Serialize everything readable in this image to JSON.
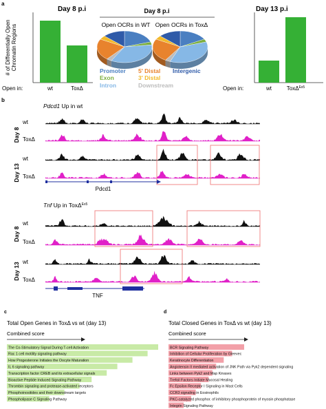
{
  "panel_a": {
    "label": "a",
    "left": {
      "title": "Day 8 p.i",
      "ylabel_line1": "# of Differentially Open",
      "ylabel_line2": "Chromatin Regions",
      "open_in": "Open in:",
      "categories": [
        "wt",
        "ToxΔ"
      ],
      "values": [
        900,
        540
      ],
      "ymax": 1000,
      "bar_color": "#35b035"
    },
    "middle": {
      "title": "Day 8 p.i",
      "pie_titles": [
        "Open OCRs in WT",
        "Open OCRs in ToxΔ"
      ],
      "legend": [
        {
          "label": "Promoter",
          "color": "#4a7fc1"
        },
        {
          "label": "5' Distal",
          "color": "#e8832d"
        },
        {
          "label": "Intergenic",
          "color": "#2f5aa8"
        },
        {
          "label": "Exon",
          "color": "#7cae3e"
        },
        {
          "label": "3' Distal",
          "color": "#f2b92b"
        },
        {
          "label": "Intron",
          "color": "#86b8e6"
        },
        {
          "label": "Downstream",
          "color": "#bcbcbc"
        }
      ],
      "pies": [
        {
          "slices": [
            {
              "label": "Promoter",
              "fraction": 0.2,
              "color": "#4a7fc1"
            },
            {
              "label": "Exon",
              "fraction": 0.03,
              "color": "#7cae3e"
            },
            {
              "label": "Intron",
              "fraction": 0.35,
              "color": "#86b8e6"
            },
            {
              "label": "Downstream",
              "fraction": 0.03,
              "color": "#bcbcbc"
            },
            {
              "label": "5' Distal",
              "fraction": 0.22,
              "color": "#e8832d"
            },
            {
              "label": "3' Distal",
              "fraction": 0.04,
              "color": "#f2b92b"
            },
            {
              "label": "Intergenic",
              "fraction": 0.13,
              "color": "#2f5aa8"
            }
          ]
        },
        {
          "slices": [
            {
              "label": "Promoter",
              "fraction": 0.17,
              "color": "#4a7fc1"
            },
            {
              "label": "Exon",
              "fraction": 0.03,
              "color": "#7cae3e"
            },
            {
              "label": "Intron",
              "fraction": 0.36,
              "color": "#86b8e6"
            },
            {
              "label": "Downstream",
              "fraction": 0.03,
              "color": "#bcbcbc"
            },
            {
              "label": "5' Distal",
              "fraction": 0.24,
              "color": "#e8832d"
            },
            {
              "label": "3' Distal",
              "fraction": 0.04,
              "color": "#f2b92b"
            },
            {
              "label": "Intergenic",
              "fraction": 0.13,
              "color": "#2f5aa8"
            }
          ]
        }
      ]
    },
    "right": {
      "title": "Day 13 p.i",
      "open_in": "Open in:",
      "categories": [
        "wt",
        "ToxΔ"
      ],
      "cat2_sup": "Ex5",
      "values": [
        320,
        950
      ],
      "ymax": 1000,
      "bar_color": "#35b035"
    }
  },
  "panel_b": {
    "label": "b",
    "pdcd1": {
      "title_gene": "Pdcd1",
      "title_rest": " Up in wt",
      "day8": "Day 8",
      "day13": "Day 13",
      "tracks": [
        {
          "label": "wt",
          "color": "#111111",
          "seed": 3
        },
        {
          "label": "ToxΔ",
          "color": "#e020c8",
          "seed": 7
        },
        {
          "label": "wt",
          "color": "#111111",
          "seed": 11
        },
        {
          "label": "ToxΔ",
          "color": "#e020c8",
          "seed": 17
        }
      ],
      "gene_label": "Pdcd1"
    },
    "tnf": {
      "title_gene": "Tnf",
      "title_rest": " Up in ToxΔ",
      "title_sup": "Ex5",
      "day8": "Day 8",
      "day13": "Day 13",
      "tracks": [
        {
          "label": "wt",
          "color": "#111111",
          "seed": 23
        },
        {
          "label": "ToxΔ",
          "color": "#e020c8",
          "seed": 29
        },
        {
          "label": "wt",
          "color": "#111111",
          "seed": 31
        },
        {
          "label": "ToxΔ",
          "color": "#e020c8",
          "seed": 37
        }
      ],
      "gene_label": "TNF"
    },
    "highlight_color": "#f07d7d",
    "gene_color": "#1f2f9f"
  },
  "panel_c": {
    "label": "c",
    "title": "Total Open Genes in ToxΔ vs wt (day 13)",
    "score_label": "Combined score",
    "bar_color": "#c8eaa6",
    "items": [
      {
        "label": "The Co-Stimulatory Signal During T-cell Activation",
        "score": 1.0
      },
      {
        "label": "Rac 1 cell motility signaling pathway",
        "score": 0.93
      },
      {
        "label": "How Progesterone Initiates the Oocyte Maturation",
        "score": 0.83
      },
      {
        "label": "IL 6 signaling pathway",
        "score": 0.73
      },
      {
        "label": "Transcription factor CREB and its extracellular signals",
        "score": 0.66
      },
      {
        "label": "Bioactive Peptide Induced Signaling Pathway",
        "score": 0.56
      },
      {
        "label": "Thrombin signaling and protease-activated receptors",
        "score": 0.48
      },
      {
        "label": "Phosphoinositides and their downstream targets",
        "score": 0.38
      },
      {
        "label": "Phospholipase C Signaling Pathway",
        "score": 0.28
      }
    ]
  },
  "panel_d": {
    "label": "d",
    "title": "Total Closed Genes in ToxΔ vs wt (day 13)",
    "score_label": "Combined score",
    "bar_color": "#f2a0a8",
    "items": [
      {
        "label": "BCR Signaling Pathway",
        "score": 1.0
      },
      {
        "label": "Inhibition of Cellular Proliferation by Gleevec",
        "score": 0.84
      },
      {
        "label": "Keratinocyte Differentiation",
        "score": 0.73
      },
      {
        "label": "Angiotensin II mediated activation of JNK Path via Pyk2 dependent signaling",
        "score": 0.63
      },
      {
        "label": "Links between Pyk2 and Map Kinases",
        "score": 0.58
      },
      {
        "label": "Trefoil Factors Initiate Mucosal Healing",
        "score": 0.53
      },
      {
        "label": "Fc Epsilon Receptor I Signaling in Mast Cells",
        "score": 0.43
      },
      {
        "label": "CCR3 signaling in Eosinophils",
        "score": 0.36
      },
      {
        "label": "PKC-catalyzed phosphor. of inhibitory phosphoprotein of myosin phosphatase",
        "score": 0.3
      },
      {
        "label": "Integrin Signaling Pathway",
        "score": 0.2
      }
    ]
  }
}
